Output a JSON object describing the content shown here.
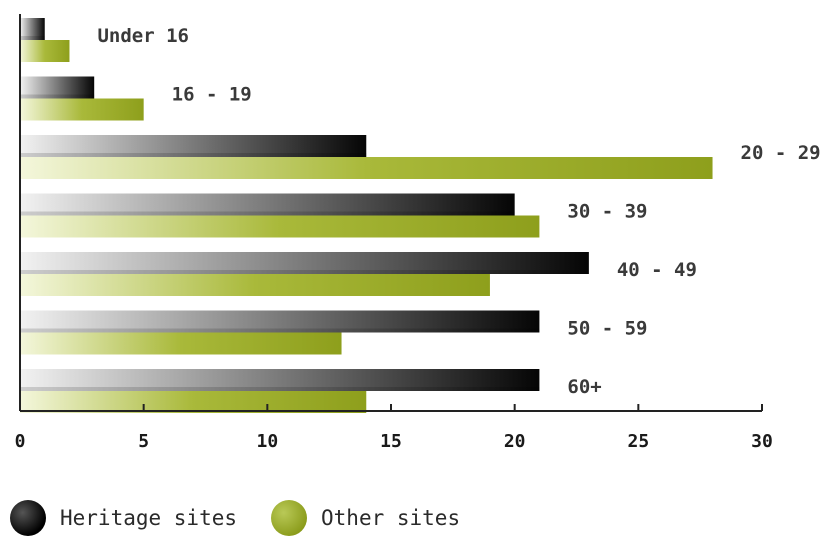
{
  "chart_data": {
    "type": "bar",
    "orientation": "horizontal",
    "categories": [
      "Under 16",
      "16 - 19",
      "20 - 29",
      "30 - 39",
      "40 - 49",
      "50 - 59",
      "60+"
    ],
    "series": [
      {
        "name": "Heritage sites",
        "values": [
          1,
          3,
          14,
          20,
          23,
          21,
          21
        ],
        "color": "#000000"
      },
      {
        "name": "Other sites",
        "values": [
          2,
          5,
          28,
          21,
          19,
          13,
          14
        ],
        "color": "#9aab22"
      }
    ],
    "xlim": [
      0,
      30
    ],
    "ticks": [
      0,
      5,
      10,
      15,
      20,
      25,
      30
    ],
    "title": "",
    "xlabel": "",
    "ylabel": "",
    "grid": false,
    "legend_position": "bottom-left"
  }
}
